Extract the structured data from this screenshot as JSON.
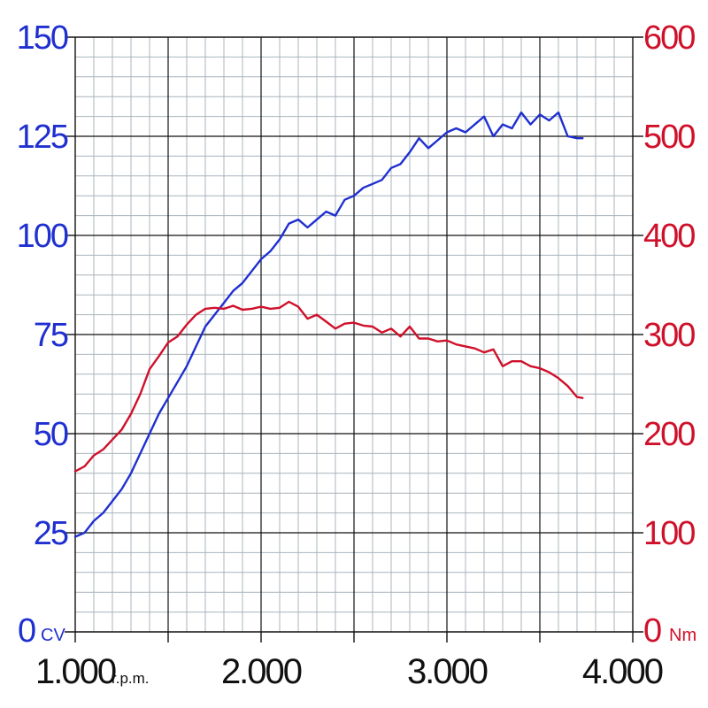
{
  "chart_data": {
    "type": "line",
    "title": "",
    "grid": true,
    "x": {
      "label": "r.p.m.",
      "range": [
        1000,
        4000
      ],
      "tick_labels": [
        "1.000",
        "2.000",
        "3.000",
        "4.000"
      ],
      "tick_values": [
        1000,
        2000,
        3000,
        4000
      ]
    },
    "y_left": {
      "label": "CV",
      "range": [
        0,
        150
      ],
      "tick_labels": [
        "0",
        "25",
        "50",
        "75",
        "100",
        "125",
        "150"
      ],
      "tick_values": [
        0,
        25,
        50,
        75,
        100,
        125,
        150
      ],
      "color": "#1f2fd0"
    },
    "y_right": {
      "label": "Nm",
      "range": [
        0,
        600
      ],
      "tick_labels": [
        "0",
        "100",
        "200",
        "300",
        "400",
        "500",
        "600"
      ],
      "tick_values": [
        0,
        100,
        200,
        300,
        400,
        500,
        600
      ],
      "color": "#d0102a"
    },
    "series": [
      {
        "axis": "left",
        "color": "#1f2fd0",
        "points": [
          [
            1000,
            24
          ],
          [
            1050,
            25
          ],
          [
            1100,
            28
          ],
          [
            1150,
            30
          ],
          [
            1200,
            33
          ],
          [
            1250,
            36
          ],
          [
            1300,
            40
          ],
          [
            1350,
            45
          ],
          [
            1400,
            50
          ],
          [
            1450,
            55
          ],
          [
            1500,
            59
          ],
          [
            1550,
            63
          ],
          [
            1600,
            67
          ],
          [
            1650,
            72
          ],
          [
            1700,
            77
          ],
          [
            1750,
            80
          ],
          [
            1800,
            83
          ],
          [
            1850,
            86
          ],
          [
            1900,
            88
          ],
          [
            1950,
            91
          ],
          [
            2000,
            94
          ],
          [
            2050,
            96
          ],
          [
            2100,
            99
          ],
          [
            2150,
            103
          ],
          [
            2200,
            104
          ],
          [
            2250,
            102
          ],
          [
            2300,
            104
          ],
          [
            2350,
            106
          ],
          [
            2400,
            105
          ],
          [
            2450,
            109
          ],
          [
            2500,
            110
          ],
          [
            2550,
            112
          ],
          [
            2600,
            113
          ],
          [
            2650,
            114
          ],
          [
            2700,
            117
          ],
          [
            2750,
            118
          ],
          [
            2800,
            121
          ],
          [
            2850,
            124.5
          ],
          [
            2900,
            122
          ],
          [
            2950,
            124
          ],
          [
            3000,
            126
          ],
          [
            3050,
            127
          ],
          [
            3100,
            126
          ],
          [
            3150,
            128
          ],
          [
            3200,
            130
          ],
          [
            3250,
            125
          ],
          [
            3300,
            128
          ],
          [
            3350,
            127
          ],
          [
            3400,
            131
          ],
          [
            3450,
            128
          ],
          [
            3500,
            130.5
          ],
          [
            3550,
            129
          ],
          [
            3600,
            131
          ],
          [
            3650,
            125
          ],
          [
            3700,
            124.5
          ],
          [
            3730,
            124.5
          ]
        ]
      },
      {
        "axis": "right",
        "color": "#d0102a",
        "points": [
          [
            1000,
            162
          ],
          [
            1050,
            167
          ],
          [
            1100,
            178
          ],
          [
            1150,
            184
          ],
          [
            1200,
            194
          ],
          [
            1250,
            204
          ],
          [
            1300,
            220
          ],
          [
            1350,
            240
          ],
          [
            1400,
            265
          ],
          [
            1450,
            278
          ],
          [
            1500,
            292
          ],
          [
            1550,
            298
          ],
          [
            1600,
            310
          ],
          [
            1650,
            320
          ],
          [
            1700,
            326
          ],
          [
            1750,
            327
          ],
          [
            1800,
            326
          ],
          [
            1850,
            329
          ],
          [
            1900,
            325
          ],
          [
            1950,
            326
          ],
          [
            2000,
            328
          ],
          [
            2050,
            326
          ],
          [
            2100,
            327
          ],
          [
            2150,
            333
          ],
          [
            2200,
            328
          ],
          [
            2250,
            316
          ],
          [
            2300,
            320
          ],
          [
            2350,
            313
          ],
          [
            2400,
            306
          ],
          [
            2450,
            311
          ],
          [
            2500,
            312
          ],
          [
            2550,
            309
          ],
          [
            2600,
            308
          ],
          [
            2650,
            302
          ],
          [
            2700,
            306
          ],
          [
            2750,
            298
          ],
          [
            2800,
            308
          ],
          [
            2850,
            296
          ],
          [
            2900,
            296
          ],
          [
            2950,
            293
          ],
          [
            3000,
            294
          ],
          [
            3050,
            290
          ],
          [
            3100,
            288
          ],
          [
            3150,
            286
          ],
          [
            3200,
            282
          ],
          [
            3250,
            285
          ],
          [
            3300,
            268
          ],
          [
            3350,
            273
          ],
          [
            3400,
            273
          ],
          [
            3450,
            268
          ],
          [
            3500,
            266
          ],
          [
            3550,
            262
          ],
          [
            3600,
            256
          ],
          [
            3650,
            248
          ],
          [
            3700,
            237
          ],
          [
            3730,
            236
          ]
        ]
      }
    ]
  }
}
